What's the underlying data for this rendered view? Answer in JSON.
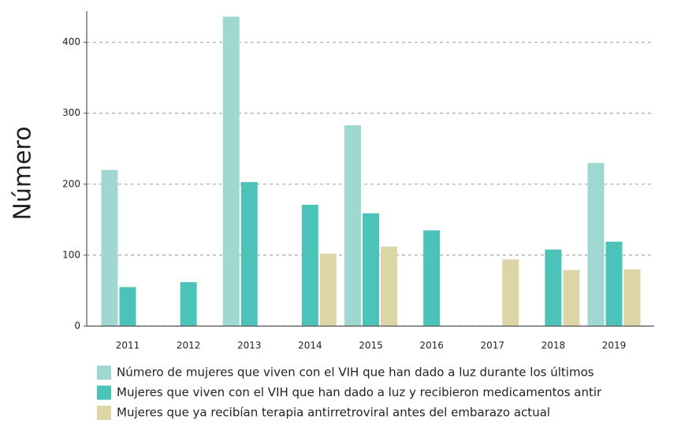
{
  "chart_data": {
    "type": "bar",
    "y_label": "Número",
    "categories": [
      "2011",
      "2012",
      "2013",
      "2014",
      "2015",
      "2016",
      "2017",
      "2018",
      "2019"
    ],
    "series": [
      {
        "name": "Número de mujeres que viven con el VIH que han dado a luz durante los últimos",
        "color": "#9ed8d0",
        "values": [
          220,
          null,
          436,
          null,
          283,
          null,
          null,
          null,
          230
        ]
      },
      {
        "name": "Mujeres que viven con el VIH que han dado a luz y recibieron medicamentos antir",
        "color": "#4cc3b8",
        "values": [
          55,
          62,
          203,
          171,
          159,
          135,
          null,
          108,
          119
        ]
      },
      {
        "name": "Mujeres que ya recibían terapia antirretroviral antes del embarazo actual",
        "color": "#dcd6a6",
        "values": [
          null,
          null,
          null,
          102,
          112,
          null,
          94,
          79,
          80
        ]
      }
    ],
    "ylim": [
      0,
      444
    ],
    "yticks": [
      0,
      100,
      200,
      300,
      400
    ],
    "grid": true
  }
}
